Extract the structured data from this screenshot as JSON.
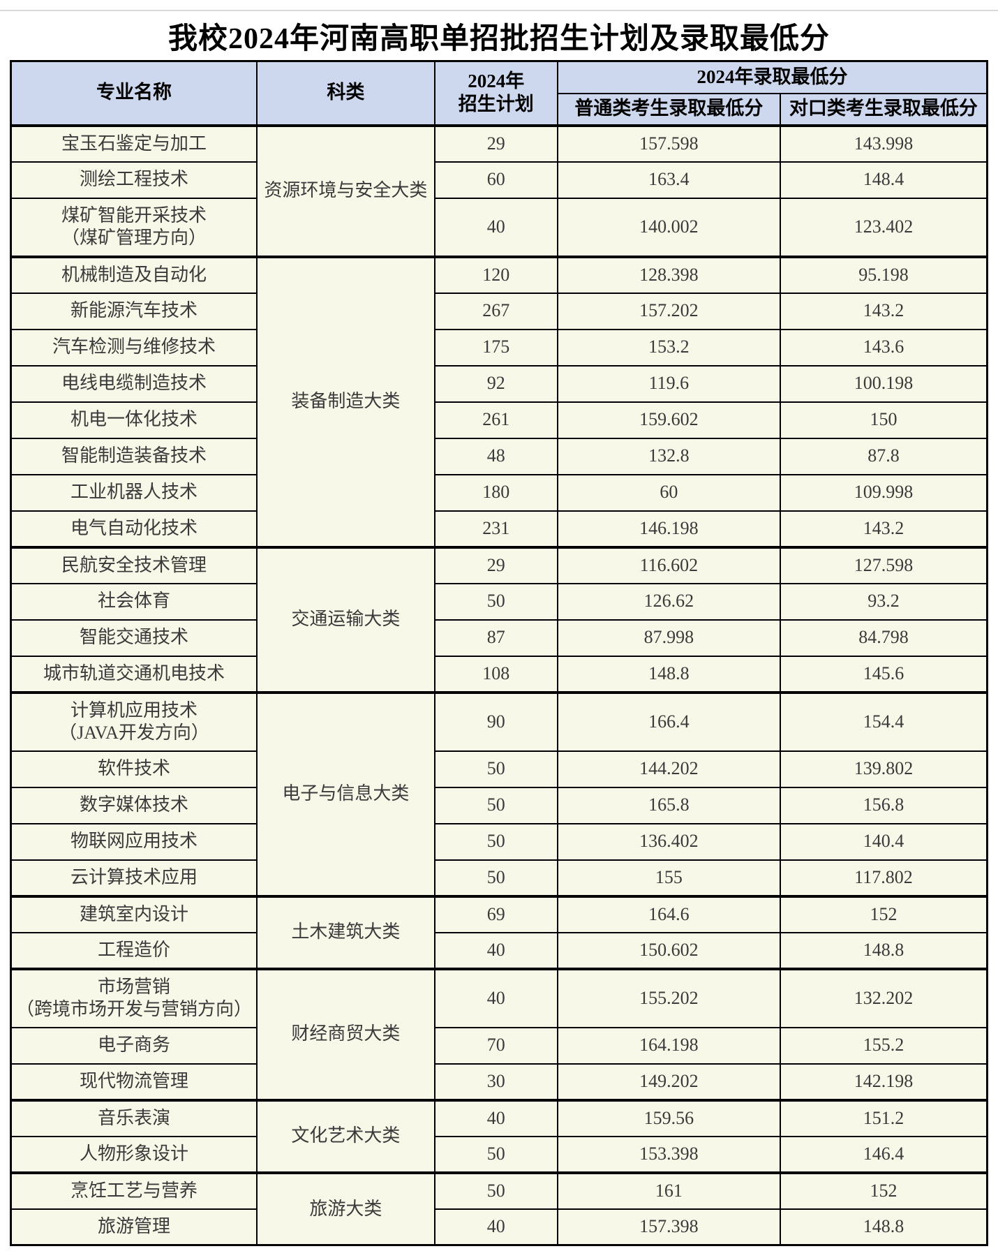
{
  "title": "我校2024年河南高职单招批招生计划及录取最低分",
  "colors": {
    "header_bg": "#cdd8ee",
    "cell_bg": "#f8f8e9",
    "border": "#000000"
  },
  "table": {
    "headers": {
      "major": "专业名称",
      "category": "科类",
      "plan": [
        "2024年",
        "招生计划"
      ],
      "min_score_group": "2024年录取最低分",
      "min_score_general": "普通类考生录取最低分",
      "min_score_counterpart": "对口类考生录取最低分"
    },
    "groups": [
      {
        "category": "资源环境与安全大类",
        "rows": [
          {
            "major": "宝玉石鉴定与加工",
            "plan": "29",
            "general": "157.598",
            "counterpart": "143.998"
          },
          {
            "major": "测绘工程技术",
            "plan": "60",
            "general": "163.4",
            "counterpart": "148.4"
          },
          {
            "major": [
              "煤矿智能开采技术",
              "（煤矿管理方向）"
            ],
            "plan": "40",
            "general": "140.002",
            "counterpart": "123.402"
          }
        ]
      },
      {
        "category": "装备制造大类",
        "rows": [
          {
            "major": "机械制造及自动化",
            "plan": "120",
            "general": "128.398",
            "counterpart": "95.198"
          },
          {
            "major": "新能源汽车技术",
            "plan": "267",
            "general": "157.202",
            "counterpart": "143.2"
          },
          {
            "major": "汽车检测与维修技术",
            "plan": "175",
            "general": "153.2",
            "counterpart": "143.6"
          },
          {
            "major": "电线电缆制造技术",
            "plan": "92",
            "general": "119.6",
            "counterpart": "100.198"
          },
          {
            "major": "机电一体化技术",
            "plan": "261",
            "general": "159.602",
            "counterpart": "150"
          },
          {
            "major": "智能制造装备技术",
            "plan": "48",
            "general": "132.8",
            "counterpart": "87.8"
          },
          {
            "major": "工业机器人技术",
            "plan": "180",
            "general": "60",
            "counterpart": "109.998"
          },
          {
            "major": "电气自动化技术",
            "plan": "231",
            "general": "146.198",
            "counterpart": "143.2"
          }
        ]
      },
      {
        "category": "交通运输大类",
        "rows": [
          {
            "major": "民航安全技术管理",
            "plan": "29",
            "general": "116.602",
            "counterpart": "127.598"
          },
          {
            "major": "社会体育",
            "plan": "50",
            "general": "126.62",
            "counterpart": "93.2"
          },
          {
            "major": "智能交通技术",
            "plan": "87",
            "general": "87.998",
            "counterpart": "84.798"
          },
          {
            "major": "城市轨道交通机电技术",
            "plan": "108",
            "general": "148.8",
            "counterpart": "145.6"
          }
        ]
      },
      {
        "category": "电子与信息大类",
        "rows": [
          {
            "major": [
              "计算机应用技术",
              "（JAVA开发方向）"
            ],
            "plan": "90",
            "general": "166.4",
            "counterpart": "154.4"
          },
          {
            "major": "软件技术",
            "plan": "50",
            "general": "144.202",
            "counterpart": "139.802"
          },
          {
            "major": "数字媒体技术",
            "plan": "50",
            "general": "165.8",
            "counterpart": "156.8"
          },
          {
            "major": "物联网应用技术",
            "plan": "50",
            "general": "136.402",
            "counterpart": "140.4"
          },
          {
            "major": "云计算技术应用",
            "plan": "50",
            "general": "155",
            "counterpart": "117.802"
          }
        ]
      },
      {
        "category": "土木建筑大类",
        "rows": [
          {
            "major": "建筑室内设计",
            "plan": "69",
            "general": "164.6",
            "counterpart": "152"
          },
          {
            "major": "工程造价",
            "plan": "40",
            "general": "150.602",
            "counterpart": "148.8"
          }
        ]
      },
      {
        "category": "财经商贸大类",
        "rows": [
          {
            "major": [
              "市场营销",
              "（跨境市场开发与营销方向）"
            ],
            "plan": "40",
            "general": "155.202",
            "counterpart": "132.202"
          },
          {
            "major": "电子商务",
            "plan": "70",
            "general": "164.198",
            "counterpart": "155.2"
          },
          {
            "major": "现代物流管理",
            "plan": "30",
            "general": "149.202",
            "counterpart": "142.198"
          }
        ]
      },
      {
        "category": "文化艺术大类",
        "rows": [
          {
            "major": "音乐表演",
            "plan": "40",
            "general": "159.56",
            "counterpart": "151.2"
          },
          {
            "major": "人物形象设计",
            "plan": "50",
            "general": "153.398",
            "counterpart": "146.4"
          }
        ]
      },
      {
        "category": "旅游大类",
        "rows": [
          {
            "major": "烹饪工艺与营养",
            "plan": "50",
            "general": "161",
            "counterpart": "152"
          },
          {
            "major": "旅游管理",
            "plan": "40",
            "general": "157.398",
            "counterpart": "148.8"
          }
        ]
      }
    ]
  }
}
